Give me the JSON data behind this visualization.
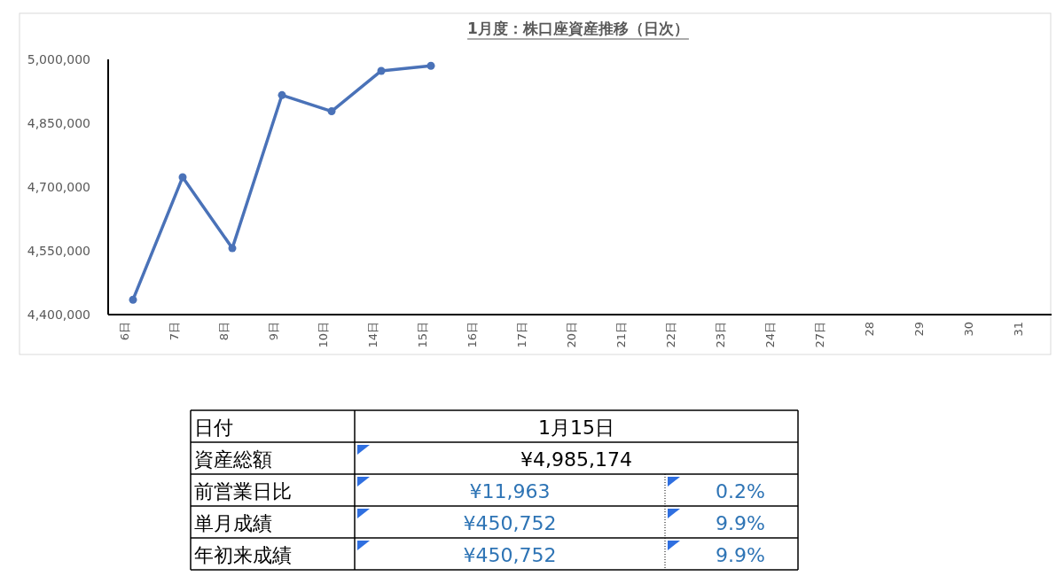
{
  "chart_data": [
    {
      "type": "line",
      "title": "1月度：株口座資産推移（日次）",
      "categories": [
        "6日",
        "7日",
        "8日",
        "9日",
        "10日",
        "14日",
        "15日",
        "16日",
        "17日",
        "20日",
        "21日",
        "22日",
        "23日",
        "24日",
        "27日",
        "28",
        "29",
        "30",
        "31"
      ],
      "series": [
        {
          "color": "#4a72b8",
          "values": [
            4435000,
            4723000,
            4556000,
            4916000,
            4878000,
            4973000,
            4985000,
            null,
            null,
            null,
            null,
            null,
            null,
            null,
            null,
            null,
            null,
            null,
            null
          ]
        }
      ],
      "ylim": [
        4400000,
        5000000
      ],
      "yticks": [
        {
          "value": 4400000,
          "label": "4,400,000"
        },
        {
          "value": 4550000,
          "label": "4,550,000"
        },
        {
          "value": 4700000,
          "label": "4,700,000"
        },
        {
          "value": 4850000,
          "label": "4,850,000"
        },
        {
          "value": 5000000,
          "label": "5,000,000"
        }
      ],
      "marker": "circle",
      "grid": false
    },
    {
      "type": "other",
      "y_categories": [
        "日付",
        "資産総額",
        "前営業日比",
        "単月成績",
        "年初来成績"
      ],
      "cell_labels": [
        [
          "1月15日"
        ],
        [
          "¥4,985,174"
        ],
        [
          "¥11,963",
          "0.2%"
        ],
        [
          "¥450,752",
          "9.9%"
        ],
        [
          "¥450,752",
          "9.9%"
        ]
      ]
    }
  ]
}
